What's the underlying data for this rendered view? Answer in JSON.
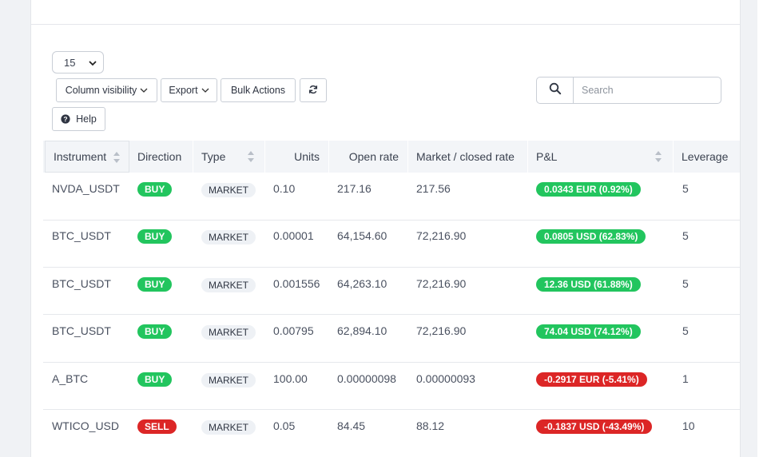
{
  "toolbar": {
    "page_size": "15",
    "column_visibility_label": "Column visibility",
    "export_label": "Export",
    "bulk_actions_label": "Bulk Actions",
    "refresh_icon": "refresh-icon",
    "help_label": "Help",
    "search_placeholder": "Search"
  },
  "columns": [
    "Instrument",
    "Direction",
    "Type",
    "Units",
    "Open rate",
    "Market / closed rate",
    "P&L",
    "Leverage"
  ],
  "rows": [
    {
      "instrument": "NVDA_USDT",
      "direction": "BUY",
      "type": "MARKET",
      "units": "0.10",
      "open_rate": "217.16",
      "market_rate": "217.56",
      "pnl": "0.0343 EUR (0.92%)",
      "pnl_sign": "pos",
      "leverage": "5"
    },
    {
      "instrument": "BTC_USDT",
      "direction": "BUY",
      "type": "MARKET",
      "units": "0.00001",
      "open_rate": "64,154.60",
      "market_rate": "72,216.90",
      "pnl": "0.0805 USD (62.83%)",
      "pnl_sign": "pos",
      "leverage": "5"
    },
    {
      "instrument": "BTC_USDT",
      "direction": "BUY",
      "type": "MARKET",
      "units": "0.001556",
      "open_rate": "64,263.10",
      "market_rate": "72,216.90",
      "pnl": "12.36 USD (61.88%)",
      "pnl_sign": "pos",
      "leverage": "5"
    },
    {
      "instrument": "BTC_USDT",
      "direction": "BUY",
      "type": "MARKET",
      "units": "0.00795",
      "open_rate": "62,894.10",
      "market_rate": "72,216.90",
      "pnl": "74.04 USD (74.12%)",
      "pnl_sign": "pos",
      "leverage": "5"
    },
    {
      "instrument": "A_BTC",
      "direction": "BUY",
      "type": "MARKET",
      "units": "100.00",
      "open_rate": "0.00000098",
      "market_rate": "0.00000093",
      "pnl": "-0.2917 EUR (-5.41%)",
      "pnl_sign": "neg",
      "leverage": "1"
    },
    {
      "instrument": "WTICO_USD",
      "direction": "SELL",
      "type": "MARKET",
      "units": "0.05",
      "open_rate": "84.45",
      "market_rate": "88.12",
      "pnl": "-0.1837 USD (-43.49%)",
      "pnl_sign": "neg",
      "leverage": "10"
    }
  ],
  "colors": {
    "buy": "#22c55e",
    "sell": "#dc2626",
    "header_bg": "#f3f5f8"
  }
}
